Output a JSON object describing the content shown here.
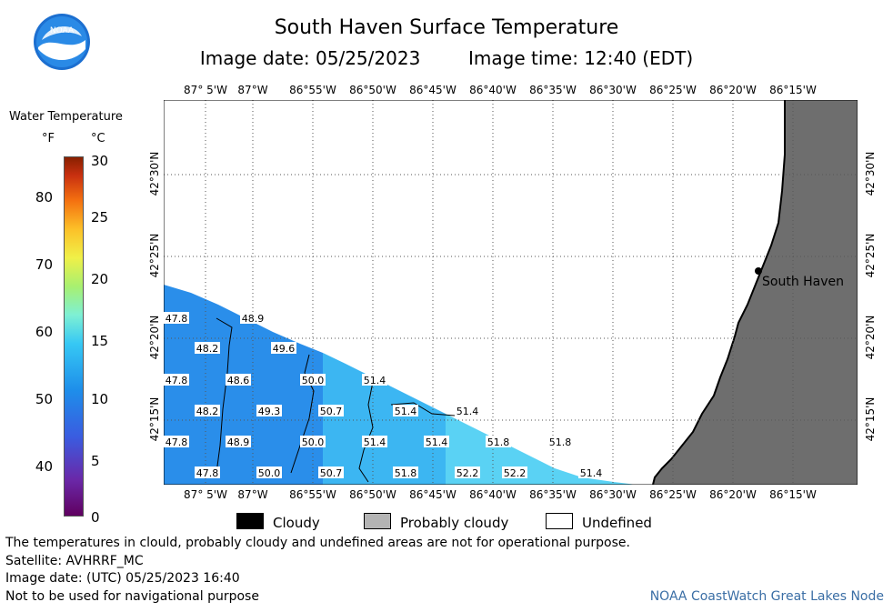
{
  "header": {
    "title": "South Haven Surface Temperature",
    "image_date": "Image date: 05/25/2023",
    "image_time": "Image time: 12:40 (EDT)"
  },
  "logo": {
    "text": "NOAA",
    "icon": "noaa-logo-icon"
  },
  "map": {
    "lon_labels": [
      "87° 5'W",
      "87°W",
      "86°55'W",
      "86°50'W",
      "86°45'W",
      "86°40'W",
      "86°35'W",
      "86°30'W",
      "86°25'W",
      "86°20'W",
      "86°15'W"
    ],
    "lat_labels": [
      "42°30'N",
      "42°25'N",
      "42°20'N",
      "42°15'N"
    ],
    "location_label": "South Haven",
    "colors": {
      "land": "#6e6e6e",
      "water_cool": "#2a8eea",
      "water_warm": "#5ad2f4"
    },
    "temperature_labels": [
      {
        "v": "47.8",
        "r": 0,
        "c": 0
      },
      {
        "v": "48.9",
        "r": 0,
        "c": 1
      },
      {
        "v": "48.2",
        "r": 1,
        "c": 0
      },
      {
        "v": "49.6",
        "r": 1,
        "c": 1
      },
      {
        "v": "47.8",
        "r": 2,
        "c": 0
      },
      {
        "v": "48.6",
        "r": 2,
        "c": 1
      },
      {
        "v": "50.0",
        "r": 2,
        "c": 2
      },
      {
        "v": "51.4",
        "r": 2,
        "c": 3
      },
      {
        "v": "48.2",
        "r": 3,
        "c": 0
      },
      {
        "v": "49.3",
        "r": 3,
        "c": 1
      },
      {
        "v": "50.7",
        "r": 3,
        "c": 2
      },
      {
        "v": "51.4",
        "r": 3,
        "c": 3
      },
      {
        "v": "51.4",
        "r": 3,
        "c": 4
      },
      {
        "v": "47.8",
        "r": 4,
        "c": 0
      },
      {
        "v": "48.9",
        "r": 4,
        "c": 1
      },
      {
        "v": "50.0",
        "r": 4,
        "c": 2
      },
      {
        "v": "51.4",
        "r": 4,
        "c": 3
      },
      {
        "v": "51.4",
        "r": 4,
        "c": 4
      },
      {
        "v": "51.8",
        "r": 4,
        "c": 5
      },
      {
        "v": "51.8",
        "r": 4,
        "c": 6
      },
      {
        "v": "47.8",
        "r": 5,
        "c": 0
      },
      {
        "v": "50.0",
        "r": 5,
        "c": 1
      },
      {
        "v": "50.7",
        "r": 5,
        "c": 2
      },
      {
        "v": "51.8",
        "r": 5,
        "c": 3
      },
      {
        "v": "52.2",
        "r": 5,
        "c": 4
      },
      {
        "v": "52.2",
        "r": 5,
        "c": 5
      },
      {
        "v": "51.4",
        "r": 5,
        "c": 6
      }
    ]
  },
  "legend": {
    "title": "Water Temperature",
    "unit_f": "°F",
    "unit_c": "°C",
    "f_ticks": [
      "80",
      "70",
      "60",
      "50",
      "40"
    ],
    "c_ticks": [
      "30",
      "25",
      "20",
      "15",
      "10",
      "5",
      "0"
    ]
  },
  "key": {
    "cloudy": "Cloudy",
    "probably_cloudy": "Probably cloudy",
    "undefined": "Undefined"
  },
  "footer": {
    "disclaimer": "The temperatures in clould, probably cloudy and undefined areas are not for operational purpose.",
    "satellite": "Satellite: AVHRRF_MC",
    "utc_date": "Image date: (UTC) 05/25/2023  16:40",
    "nav_warning": "Not to be used for navigational purpose",
    "credit": "NOAA CoastWatch Great Lakes Node"
  }
}
